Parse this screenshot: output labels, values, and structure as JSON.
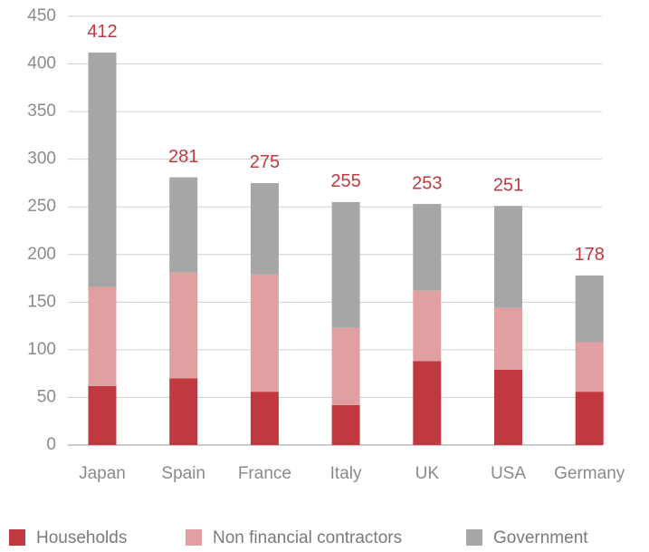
{
  "chart_data": {
    "type": "stacked_bar",
    "categories": [
      "Japan",
      "Spain",
      "France",
      "Italy",
      "UK",
      "USA",
      "Germany"
    ],
    "series": [
      {
        "name": "Households",
        "color": "#c0393f",
        "values": [
          62,
          70,
          56,
          42,
          88,
          79,
          56
        ]
      },
      {
        "name": "Non financial contractors",
        "color": "#e0a0a2",
        "values": [
          104,
          111,
          123,
          81,
          74,
          65,
          52
        ]
      },
      {
        "name": "Government",
        "color": "#a6a6a6",
        "values": [
          246,
          100,
          96,
          132,
          91,
          107,
          70
        ]
      }
    ],
    "totals": [
      412,
      281,
      275,
      255,
      253,
      251,
      178
    ],
    "ylim": [
      0,
      450
    ],
    "yticks": [
      0,
      50,
      100,
      150,
      200,
      250,
      300,
      350,
      400,
      450
    ],
    "grid": true
  }
}
